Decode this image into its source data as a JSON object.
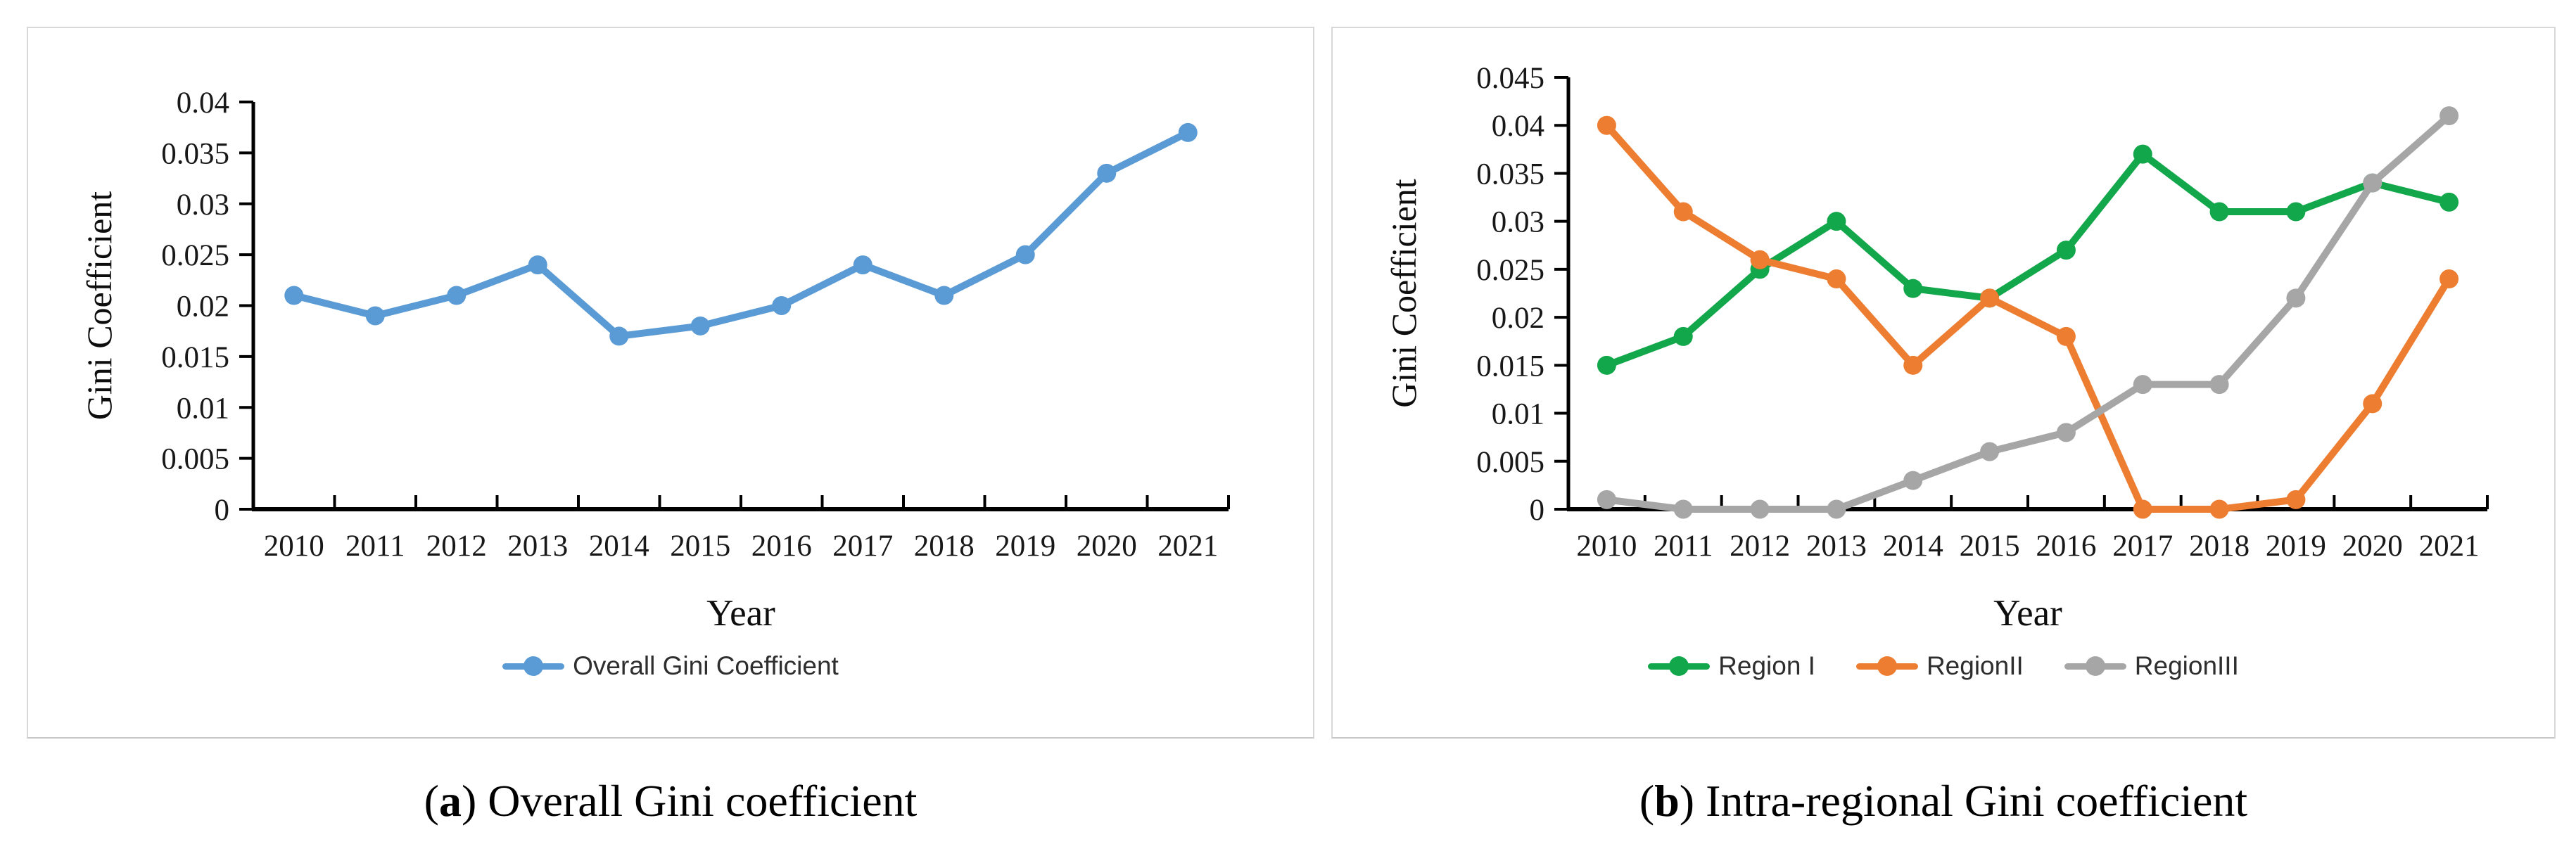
{
  "figure": {
    "panels": [
      {
        "id": "a",
        "caption": {
          "pre": "(",
          "letter": "a",
          "post": ") Overall Gini coefficient"
        }
      },
      {
        "id": "b",
        "caption": {
          "pre": "(",
          "letter": "b",
          "post": ") Intra-regional Gini coefficient"
        }
      }
    ]
  },
  "chart_data": [
    {
      "type": "line",
      "title": "",
      "xlabel": "Year",
      "ylabel": "Gini Coefficient",
      "categories": [
        "2010",
        "2011",
        "2012",
        "2013",
        "2014",
        "2015",
        "2016",
        "2017",
        "2018",
        "2019",
        "2020",
        "2021"
      ],
      "series": [
        {
          "name": "Overall Gini Coefficient",
          "color": "#5B9BD5",
          "values": [
            0.021,
            0.019,
            0.021,
            0.024,
            0.017,
            0.018,
            0.02,
            0.024,
            0.021,
            0.025,
            0.033,
            0.037
          ]
        }
      ],
      "ylim": [
        0,
        0.04
      ],
      "ytick_step": 0.005,
      "grid": false,
      "legend_position": "bottom"
    },
    {
      "type": "line",
      "title": "",
      "xlabel": "Year",
      "ylabel": "Gini Coefficient",
      "categories": [
        "2010",
        "2011",
        "2012",
        "2013",
        "2014",
        "2015",
        "2016",
        "2017",
        "2018",
        "2019",
        "2020",
        "2021"
      ],
      "series": [
        {
          "name": "Region I",
          "color": "#12A74B",
          "values": [
            0.015,
            0.018,
            0.025,
            0.03,
            0.023,
            0.022,
            0.027,
            0.037,
            0.031,
            0.031,
            0.034,
            0.032
          ]
        },
        {
          "name": "RegionII",
          "color": "#ED7D31",
          "values": [
            0.04,
            0.031,
            0.026,
            0.024,
            0.015,
            0.022,
            0.018,
            0.0,
            0.0,
            0.001,
            0.011,
            0.024
          ]
        },
        {
          "name": "RegionIII",
          "color": "#A6A6A6",
          "values": [
            0.001,
            0.0,
            0.0,
            0.0,
            0.003,
            0.006,
            0.008,
            0.013,
            0.013,
            0.022,
            0.034,
            0.041
          ]
        }
      ],
      "ylim": [
        0,
        0.045
      ],
      "ytick_step": 0.005,
      "grid": false,
      "legend_position": "bottom"
    }
  ]
}
